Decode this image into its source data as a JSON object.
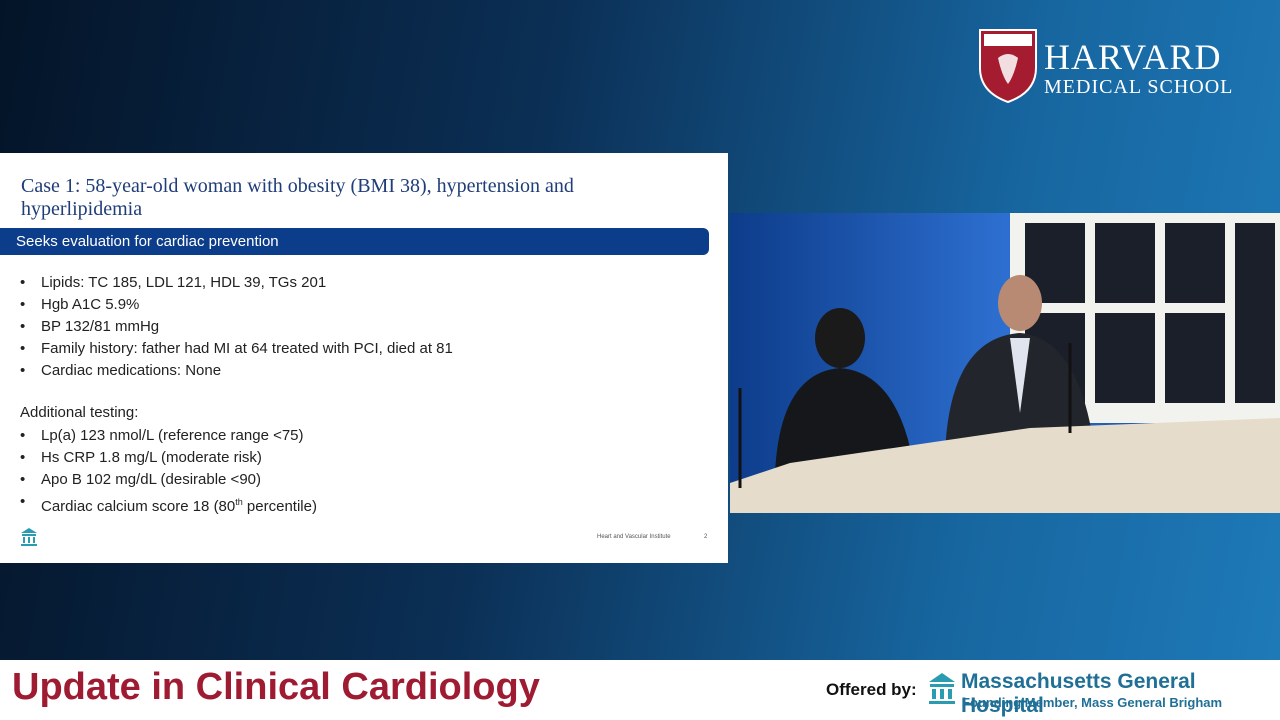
{
  "logo": {
    "name": "HARVARD",
    "subtitle": "MEDICAL SCHOOL"
  },
  "slide": {
    "title": "Case 1: 58-year-old woman with obesity (BMI 38), hypertension and hyperlipidemia",
    "banner": "Seeks evaluation for cardiac prevention",
    "bullets": [
      "Lipids: TC 185, LDL 121, HDL 39, TGs 201",
      "Hgb A1C 5.9%",
      "BP 132/81 mmHg",
      "Family history: father had MI at 64 treated with PCI, died at 81",
      "Cardiac medications: None"
    ],
    "additional_heading": "Additional testing:",
    "additional_bullets": [
      {
        "text": "Lp(a) 123 nmol/L (reference range <75)"
      },
      {
        "text": "Hs CRP 1.8 mg/L (moderate risk)"
      },
      {
        "text": "Apo B 102 mg/dL (desirable <90)"
      },
      {
        "text": "Cardiac calcium score 18 (80",
        "sup": "th",
        "after": " percentile)"
      }
    ],
    "footer": "Heart and Vascular Institute",
    "page": 2
  },
  "bottom_bar": {
    "title": "Update in Clinical Cardiology",
    "offered_by": "Offered by:",
    "org": "Massachusetts General Hospital",
    "org_subtitle": "Founding Member, Mass General Brigham"
  }
}
